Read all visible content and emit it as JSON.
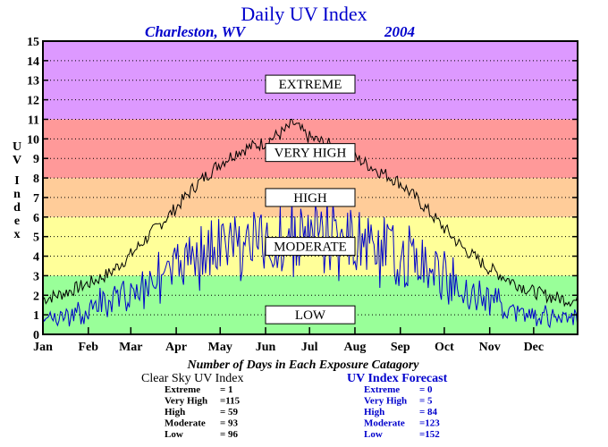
{
  "chart_data": {
    "type": "line",
    "title": "Daily UV Index",
    "location": "Charleston, WV",
    "year": "2004",
    "ylabel": "UV Index",
    "ylim": [
      0,
      15
    ],
    "yticks": [
      "0",
      "1",
      "2",
      "3",
      "4",
      "5",
      "6",
      "7",
      "8",
      "9",
      "10",
      "11",
      "12",
      "13",
      "14",
      "15"
    ],
    "months": [
      "Jan",
      "Feb",
      "Mar",
      "Apr",
      "May",
      "Jun",
      "Jul",
      "Aug",
      "Sep",
      "Oct",
      "Nov",
      "Dec"
    ],
    "days_in_year": 366,
    "grid": "dotted horizontal",
    "bands": [
      {
        "label": "LOW",
        "from": 0,
        "to": 3,
        "color": "#99ff99"
      },
      {
        "label": "MODERATE",
        "from": 3,
        "to": 6,
        "color": "#ffff99"
      },
      {
        "label": "HIGH",
        "from": 6,
        "to": 8,
        "color": "#ffcc99"
      },
      {
        "label": "VERY HIGH",
        "from": 8,
        "to": 11,
        "color": "#ff9999"
      },
      {
        "label": "EXTREME",
        "from": 11,
        "to": 15,
        "color": "#dd99ff"
      }
    ],
    "series": [
      {
        "name": "Clear Sky UV Index",
        "color": "#000000",
        "points": [
          [
            1,
            1.8
          ],
          [
            15,
            2.1
          ],
          [
            32,
            2.6
          ],
          [
            46,
            3.1
          ],
          [
            60,
            4.0
          ],
          [
            74,
            5.1
          ],
          [
            91,
            6.4
          ],
          [
            105,
            7.6
          ],
          [
            121,
            8.7
          ],
          [
            135,
            9.4
          ],
          [
            152,
            9.8
          ],
          [
            166,
            10.4
          ],
          [
            172,
            10.8
          ],
          [
            182,
            10.1
          ],
          [
            196,
            9.7
          ],
          [
            213,
            9.1
          ],
          [
            227,
            8.5
          ],
          [
            244,
            7.8
          ],
          [
            258,
            6.8
          ],
          [
            274,
            5.5
          ],
          [
            288,
            4.4
          ],
          [
            305,
            3.4
          ],
          [
            319,
            2.8
          ],
          [
            335,
            2.2
          ],
          [
            349,
            1.9
          ],
          [
            366,
            1.7
          ]
        ]
      },
      {
        "name": "UV Index Forecast",
        "color": "#0000cc",
        "points": [
          [
            1,
            1.0
          ],
          [
            15,
            1.2
          ],
          [
            32,
            1.6
          ],
          [
            46,
            2.3
          ],
          [
            60,
            2.9
          ],
          [
            74,
            3.8
          ],
          [
            91,
            4.6
          ],
          [
            105,
            5.6
          ],
          [
            121,
            6.1
          ],
          [
            135,
            6.6
          ],
          [
            152,
            6.3
          ],
          [
            166,
            6.8
          ],
          [
            182,
            7.0
          ],
          [
            196,
            6.9
          ],
          [
            213,
            6.3
          ],
          [
            227,
            6.2
          ],
          [
            244,
            5.6
          ],
          [
            258,
            5.0
          ],
          [
            274,
            4.2
          ],
          [
            288,
            3.2
          ],
          [
            305,
            2.5
          ],
          [
            319,
            2.0
          ],
          [
            335,
            1.5
          ],
          [
            349,
            1.2
          ],
          [
            366,
            1.0
          ]
        ]
      }
    ]
  },
  "summary": {
    "caption": "Number of Days in Each Exposure Catagory",
    "clear_sky": {
      "heading": "Clear Sky UV Index",
      "rows": [
        {
          "label": "Extreme",
          "value": "=   1"
        },
        {
          "label": "Very High",
          "value": "=115"
        },
        {
          "label": "High",
          "value": "=  59"
        },
        {
          "label": "Moderate",
          "value": "=  93"
        },
        {
          "label": "Low",
          "value": "=  96"
        }
      ]
    },
    "forecast": {
      "heading": "UV Index Forecast",
      "rows": [
        {
          "label": "Extreme",
          "value": "=    0"
        },
        {
          "label": "Very High",
          "value": "=    5"
        },
        {
          "label": "High",
          "value": "=  84"
        },
        {
          "label": "Moderate",
          "value": "=123"
        },
        {
          "label": "Low",
          "value": "=152"
        }
      ]
    }
  }
}
